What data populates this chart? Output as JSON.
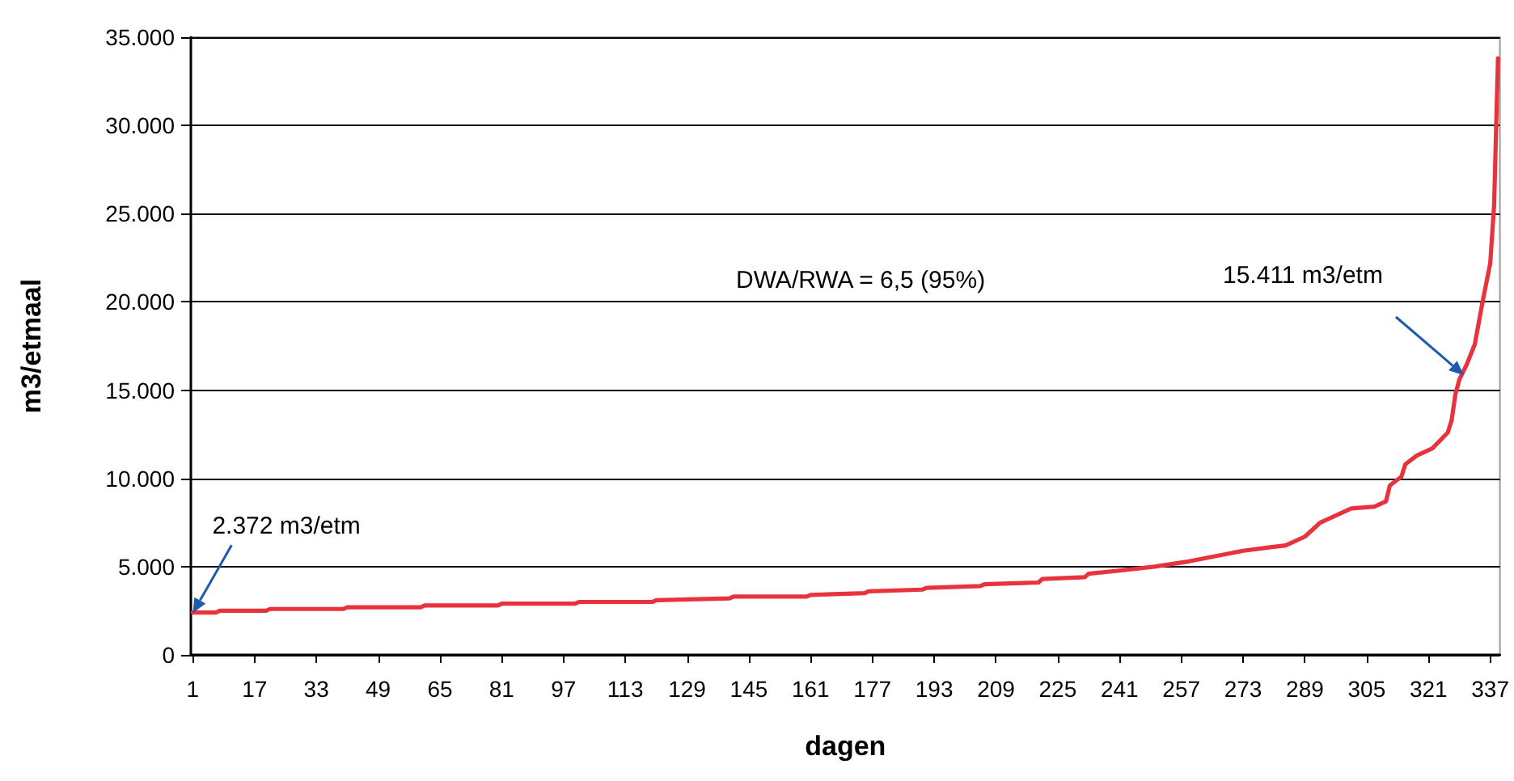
{
  "chart_data": {
    "type": "line",
    "xlabel": "dagen",
    "ylabel": "m3/etmaal",
    "x": [
      1,
      7,
      8,
      20,
      21,
      40,
      41,
      60,
      61,
      80,
      81,
      100,
      101,
      120,
      121,
      140,
      141,
      160,
      161,
      175,
      176,
      190,
      191,
      205,
      206,
      220,
      221,
      232,
      233,
      242,
      250,
      259,
      266,
      273,
      280,
      284,
      289,
      293,
      297,
      301,
      307,
      310,
      311,
      314,
      315,
      318,
      322,
      326,
      327,
      328,
      329,
      331,
      333,
      335,
      337,
      338,
      339
    ],
    "series": [
      {
        "color": "#e8323c",
        "values": [
          2400,
          2400,
          2500,
          2500,
          2600,
          2600,
          2700,
          2700,
          2800,
          2800,
          2900,
          2900,
          3000,
          3000,
          3100,
          3200,
          3300,
          3300,
          3400,
          3500,
          3600,
          3700,
          3800,
          3900,
          4000,
          4100,
          4300,
          4400,
          4600,
          4800,
          5000,
          5300,
          5600,
          5900,
          6100,
          6200,
          6700,
          7500,
          7900,
          8300,
          8400,
          8700,
          9600,
          10100,
          10800,
          11300,
          11700,
          12600,
          13300,
          14800,
          15600,
          16500,
          17600,
          20000,
          22200,
          25500,
          33800
        ]
      }
    ],
    "xlim": [
      0.5,
      339.5
    ],
    "xticks": [
      1,
      17,
      33,
      49,
      65,
      81,
      97,
      113,
      129,
      145,
      161,
      177,
      193,
      209,
      225,
      241,
      257,
      273,
      289,
      305,
      321,
      337
    ],
    "ylim": [
      0,
      35000
    ],
    "yticks": [
      {
        "value": 0,
        "label": "0"
      },
      {
        "value": 5000,
        "label": "5.000"
      },
      {
        "value": 10000,
        "label": "10.000"
      },
      {
        "value": 15000,
        "label": "15.000"
      },
      {
        "value": 20000,
        "label": "20.000"
      },
      {
        "value": 25000,
        "label": "25.000"
      },
      {
        "value": 30000,
        "label": "30.000"
      },
      {
        "value": 35000,
        "label": "35.000"
      }
    ],
    "grid": "y",
    "marker": "none",
    "line_style": "solid",
    "annotations": [
      {
        "text": "2.372 m3/etm",
        "x": 1,
        "y": 2372
      },
      "DWA/RWA = 6,5 (95%)",
      "15.411 m3/etm"
    ]
  }
}
